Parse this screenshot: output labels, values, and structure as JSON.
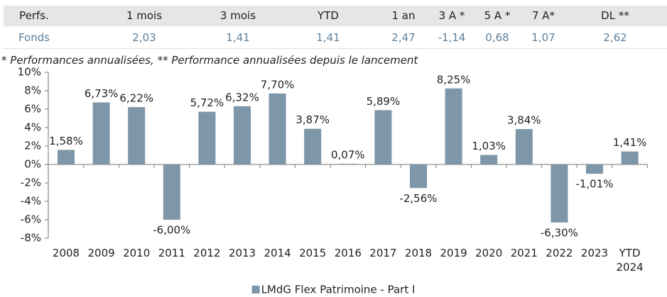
{
  "table": {
    "header": [
      "Perfs.",
      "1 mois",
      "3 mois",
      "YTD",
      "1 an",
      "3 A *",
      "5 A *",
      "7 A*",
      "DL **"
    ],
    "rows": [
      [
        "Fonds",
        "2,03",
        "1,41",
        "1,41",
        "2,47",
        "-1,14",
        "0,68",
        "1,07",
        "2,62"
      ]
    ]
  },
  "footnote": "* Performances annualisées, ** Performance annualisées depuis le lancement",
  "chart_data": {
    "type": "bar",
    "categories": [
      "2008",
      "2009",
      "2010",
      "2011",
      "2012",
      "2013",
      "2014",
      "2015",
      "2016",
      "2017",
      "2018",
      "2019",
      "2020",
      "2021",
      "2022",
      "2023",
      "YTD 2024"
    ],
    "series": [
      {
        "name": "LMdG Flex Patrimoine - Part I",
        "color": "#7d96a8",
        "values": [
          1.58,
          6.73,
          6.22,
          -6.0,
          5.72,
          6.32,
          7.7,
          3.87,
          0.07,
          5.89,
          -2.56,
          8.25,
          1.03,
          3.84,
          -6.3,
          -1.01,
          1.41
        ],
        "value_labels": [
          "1,58%",
          "6,73%",
          "6,22%",
          "-6,00%",
          "5,72%",
          "6,32%",
          "7,70%",
          "3,87%",
          "0,07%",
          "5,89%",
          "-2,56%",
          "8,25%",
          "1,03%",
          "3,84%",
          "-6,30%",
          "-1,01%",
          "1,41%"
        ]
      }
    ],
    "ylim": [
      -8,
      10
    ],
    "yticks": [
      {
        "value": -8,
        "label": "-8%"
      },
      {
        "value": -6,
        "label": "-6%"
      },
      {
        "value": -4,
        "label": "-4%"
      },
      {
        "value": -2,
        "label": "-2%"
      },
      {
        "value": 0,
        "label": "0%"
      },
      {
        "value": 2,
        "label": "2%"
      },
      {
        "value": 4,
        "label": "4%"
      },
      {
        "value": 6,
        "label": "6%"
      },
      {
        "value": 8,
        "label": "8%"
      },
      {
        "value": 10,
        "label": "10%"
      }
    ],
    "legend": "bottom"
  }
}
